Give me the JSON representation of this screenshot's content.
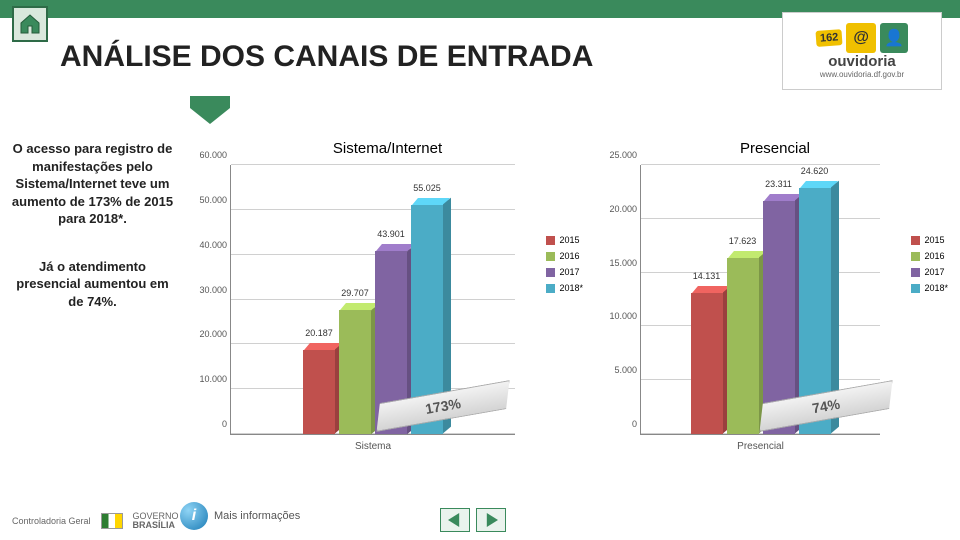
{
  "colors": {
    "accent": "#3a8a5c",
    "series": {
      "2015": "#c0504d",
      "2016": "#9bbb59",
      "2017": "#8064a2",
      "2018": "#4bacc6"
    }
  },
  "title": "ANÁLISE DOS CANAIS DE ENTRADA",
  "logo": {
    "tag": "162",
    "brand": "ouvidoria",
    "url": "www.ouvidoria.df.gov.br"
  },
  "sidebar": {
    "p1": "O acesso para registro de manifestações pelo Sistema/Internet teve um aumento de 173% de 2015 para 2018*.",
    "p2": "Já o atendimento presencial aumentou em de 74%."
  },
  "legend_labels": [
    "2015",
    "2016",
    "2017",
    "2018*"
  ],
  "panels": {
    "sistema": {
      "title": "Sistema/Internet",
      "x_label": "Sistema",
      "ymax": 60000,
      "ytick_step": 10000,
      "values": [
        20187,
        29707,
        43901,
        55025
      ],
      "ribbon": "173%"
    },
    "presencial": {
      "title": "Presencial",
      "x_label": "Presencial",
      "ymax": 25000,
      "ytick_step": 5000,
      "values": [
        14131,
        17623,
        23311,
        24620
      ],
      "ribbon": "74%"
    }
  },
  "footer": {
    "controladoria": "Controladoria Geral",
    "gov1": "GOVERNO DE",
    "gov2": "BRASÍLIA",
    "info": "Mais informações"
  }
}
